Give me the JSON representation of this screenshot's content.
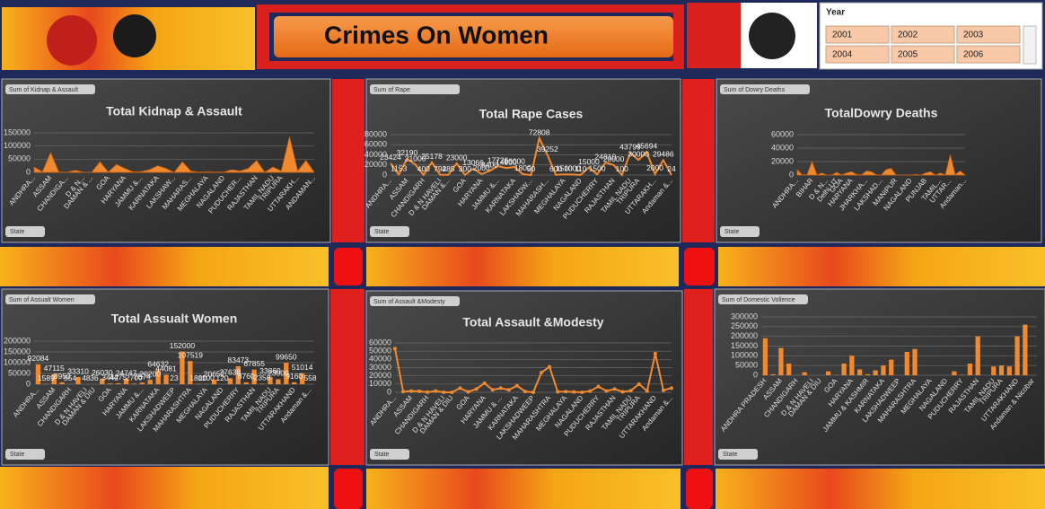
{
  "header": {
    "title": "Crimes On Women"
  },
  "slicer": {
    "title": "Year",
    "items": [
      "2001",
      "2002",
      "2003",
      "2004",
      "2005",
      "2006"
    ]
  },
  "chart_data": [
    {
      "type": "area",
      "title": "Total Kidnap & Assault",
      "field_button": "Sum of Kidnap & Assault",
      "filter_label": "State",
      "color": "#f08a30",
      "grid": true,
      "categories": [
        "ANDHRA...",
        null,
        "ASSAM",
        null,
        "CHANDIGA...",
        null,
        "D & N...",
        "DAMAN & ...",
        null,
        "GOA",
        null,
        "HARYANA",
        null,
        "JAMMU &...",
        null,
        "KARNATAKA",
        null,
        "LAKSHAW...",
        null,
        "MAHARAS...",
        null,
        "MEGHALAYA",
        null,
        "NAGALAND",
        null,
        "PUDUCHER...",
        null,
        "RAJASTHAN",
        null,
        "TAMIL NADU",
        "TRIPURA",
        null,
        "UTTARAKH...",
        null,
        "ANDAMAN..."
      ],
      "values": [
        20000,
        2000,
        75000,
        1000,
        500,
        8000,
        100,
        200,
        40000,
        1000,
        30000,
        15000,
        2000,
        3000,
        10000,
        25000,
        15000,
        100,
        40000,
        5000,
        1000,
        2000,
        1000,
        1000,
        10000,
        5000,
        15000,
        45000,
        500,
        20000,
        5000,
        135000,
        5000,
        45000,
        500
      ],
      "ylim": [
        0,
        150000
      ],
      "yticks": [
        0,
        50000,
        100000,
        150000
      ]
    },
    {
      "type": "line",
      "title": "Total Rape Cases",
      "field_button": "Sum of Rape",
      "filter_label": "State",
      "color": "#f08a30",
      "grid": true,
      "show_values": true,
      "categories": [
        "ANDHRA...",
        null,
        "ASSAM",
        null,
        "CHANDIGARH",
        null,
        "D & N HAVELI",
        "DAMAN &...",
        null,
        "GOA",
        null,
        "HARYANA",
        null,
        "JAMMU &...",
        null,
        "KARNATAKA",
        null,
        "LAKSHADW...",
        null,
        "MAHARASH...",
        null,
        "MEGHALAYA",
        null,
        "NAGALAND",
        null,
        "PUDUCHERRY",
        null,
        "RAJASTHAN",
        null,
        "TAMIL NADU",
        "TRIPURA",
        null,
        "UTTARAKH...",
        null,
        "Andaman &..."
      ],
      "values": [
        23424,
        1153,
        32190,
        21000,
        400,
        25178,
        794,
        285,
        23000,
        300,
        13066,
        2000,
        8400,
        17726,
        14000,
        16000,
        1800,
        50,
        72808,
        39252,
        600,
        1500,
        1000,
        110,
        15000,
        1500,
        24810,
        20000,
        100,
        43799,
        30000,
        45694,
        2000,
        29486,
        24
      ],
      "ylim": [
        0,
        80000
      ],
      "yticks": [
        0,
        20000,
        40000,
        60000,
        80000
      ]
    },
    {
      "type": "area",
      "title": "TotalDowry Deaths",
      "field_button": "Sum of Dowry Deaths",
      "filter_label": "State",
      "color": "#f08a30",
      "grid": true,
      "categories": [
        "ANDHRA...",
        null,
        null,
        "BIHAR",
        null,
        null,
        "D & N...",
        null,
        "Delhi UT",
        "GOA",
        null,
        "HARYANA",
        null,
        null,
        "JHARKHA...",
        null,
        null,
        "LAKSHAD...",
        null,
        null,
        "MANIPUR",
        null,
        null,
        "NAGALAND",
        null,
        null,
        "PUNJAB",
        null,
        null,
        "TAMIL...",
        null,
        "UTTAR...",
        null,
        null,
        "Andaman..."
      ],
      "values": [
        8000,
        200,
        500,
        20000,
        100,
        3000,
        50,
        20,
        4000,
        50,
        3000,
        5000,
        1000,
        100,
        6000,
        5000,
        500,
        10,
        8000,
        10000,
        100,
        50,
        10,
        20,
        1000,
        10,
        3000,
        5000,
        10,
        3000,
        100,
        30000,
        500,
        6000,
        5
      ],
      "ylim": [
        0,
        60000
      ],
      "yticks": [
        0,
        20000,
        40000,
        60000
      ]
    },
    {
      "type": "bar",
      "title": "Total Assualt Women",
      "field_button": "Sum of Assualt Women",
      "filter_label": "State",
      "color": "#f08a30",
      "grid": true,
      "show_values": true,
      "categories": [
        "ANDHRA...",
        null,
        "ASSAM",
        null,
        "CHANDIGARH",
        null,
        "D & N HAVELI",
        "DAMAN & DIU",
        null,
        "GOA",
        null,
        "HARYANA",
        null,
        "JAMMU &...",
        null,
        "KARNATAKA",
        null,
        "LAKSHADWEEP",
        null,
        "MAHARASHTRA",
        null,
        "MEGHALAYA",
        null,
        "NAGALAND",
        null,
        "PUDUCHERRY",
        null,
        "RAJASTHAN",
        null,
        "TAMIL NADU",
        "TRIPURA",
        null,
        "UTTARAKHAND",
        null,
        "Andaman &..."
      ],
      "values": [
        92084,
        1589,
        47115,
        8950,
        554,
        33310,
        48,
        36,
        26030,
        3442,
        4475,
        24747,
        2700,
        7574,
        20200,
        64632,
        44081,
        23,
        152000,
        107519,
        1800,
        1100,
        20652,
        120,
        27638,
        83473,
        8760,
        67855,
        2358,
        33860,
        23000,
        99650,
        9160,
        51014,
        558
      ],
      "ylim": [
        0,
        200000
      ],
      "yticks": [
        0,
        50000,
        100000,
        150000,
        200000
      ]
    },
    {
      "type": "line",
      "title": "Total Assault &Modesty",
      "field_button": "Sum of Assault &Modesty",
      "filter_label": "State",
      "color": "#f08a30",
      "grid": true,
      "markers": true,
      "categories": [
        "ANDHRA...",
        null,
        "ASSAM",
        null,
        "CHANDIGARH",
        null,
        "D & N HAVELI",
        "DAMAN & DIU",
        null,
        "GOA",
        null,
        "HARYANA",
        null,
        "JAMMU & ...",
        null,
        "KARNATAKA",
        null,
        "LAKSHADWEEP",
        null,
        "MAHARASHTRA",
        null,
        "MEGHALAYA",
        null,
        "NAGALAND",
        null,
        "PUDUCHERRY",
        null,
        "RAJASTHAN",
        null,
        "TAMIL NADU",
        "TRIPURA",
        null,
        "UTTARAKHAND",
        null,
        "Andaman &..."
      ],
      "values": [
        53000,
        800,
        1500,
        1200,
        100,
        1500,
        50,
        30,
        5000,
        500,
        4000,
        11000,
        3000,
        5000,
        3000,
        8000,
        1000,
        20,
        24000,
        31000,
        500,
        800,
        400,
        50,
        1500,
        7000,
        1500,
        4000,
        500,
        2000,
        10000,
        1500,
        47000,
        2500,
        5000
      ],
      "ylim": [
        0,
        60000
      ],
      "yticks": [
        0,
        10000,
        20000,
        30000,
        40000,
        50000,
        60000
      ]
    },
    {
      "type": "bar",
      "field_button": "Sum of Domestic Vollence",
      "filter_label": "State",
      "color": "#f08a30",
      "grid": true,
      "categories": [
        "ANDHRA PRADESH",
        null,
        "ASSAM",
        null,
        "CHANDIGARH",
        null,
        "D & N HAVELI",
        "DAMAN & DIU",
        null,
        "GOA",
        null,
        "HARYANA",
        null,
        "JAMMU & KASHMIR",
        null,
        "KARNATAKA",
        null,
        "LAKSHADWEEP",
        null,
        "MAHARASHTRA",
        null,
        "MEGHALAYA",
        null,
        "NAGALAND",
        null,
        "PUDUCHERRY",
        null,
        "RAJASTHAN",
        null,
        "TAMIL NADU",
        "TRIPURA",
        null,
        "UTTARAKHAND",
        null,
        "Andaman & Nicobar"
      ],
      "values": [
        190000,
        5000,
        140000,
        60000,
        500,
        15000,
        100,
        50,
        20000,
        1000,
        60000,
        100000,
        30000,
        5000,
        25000,
        50000,
        80000,
        10,
        120000,
        135000,
        100,
        200,
        50,
        30,
        20000,
        2000,
        60000,
        200000,
        100,
        45000,
        50000,
        45000,
        200000,
        260000,
        100
      ],
      "ylim": [
        0,
        300000
      ],
      "yticks": [
        0,
        50000,
        100000,
        150000,
        200000,
        250000,
        300000
      ]
    }
  ]
}
